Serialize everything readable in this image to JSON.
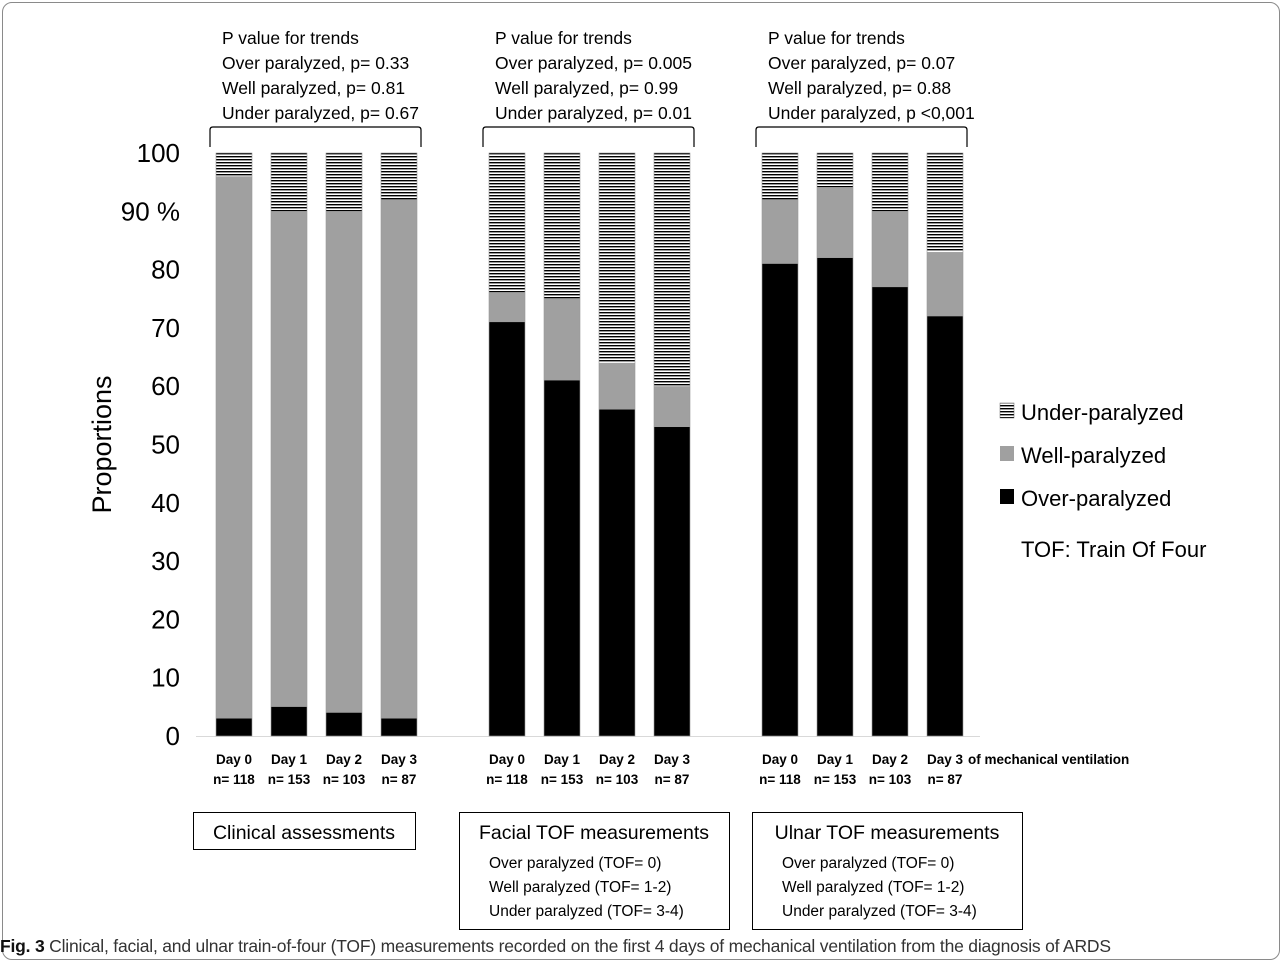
{
  "chart_data": {
    "type": "bar",
    "stacked": true,
    "ylabel": "Proportions",
    "ylim": [
      0,
      100
    ],
    "yticks": [
      "0",
      "10",
      "20",
      "30",
      "40",
      "50",
      "60",
      "70",
      "80",
      "90 %",
      "100"
    ],
    "x_suffix": "of mechanical ventilation",
    "legend": {
      "placement": "right",
      "items": [
        {
          "key": "under",
          "label": "Under-paralyzed"
        },
        {
          "key": "well",
          "label": "Well-paralyzed"
        },
        {
          "key": "over",
          "label": "Over-paralyzed"
        }
      ],
      "note": "TOF: Train Of Four"
    },
    "colors": {
      "over": "#000000",
      "well": "#a0a0a0",
      "under_stripe": "#000000",
      "under_bg": "#ffffff"
    },
    "groups": [
      {
        "name": "Clinical assessments",
        "box_lines": [],
        "pvalues": [
          "P value for trends",
          "Over paralyzed, p= 0.33",
          "Well paralyzed, p= 0.81",
          "Under paralyzed, p= 0.67"
        ],
        "bars": [
          {
            "day": "Day 0",
            "n": "n= 118",
            "over": 3,
            "well": 93,
            "under": 4
          },
          {
            "day": "Day 1",
            "n": "n= 153",
            "over": 5,
            "well": 85,
            "under": 10
          },
          {
            "day": "Day 2",
            "n": "n= 103",
            "over": 4,
            "well": 86,
            "under": 10
          },
          {
            "day": "Day 3",
            "n": "n= 87",
            "over": 3,
            "well": 89,
            "under": 8
          }
        ]
      },
      {
        "name": "Facial TOF measurements",
        "box_lines": [
          "Over paralyzed (TOF= 0)",
          "Well  paralyzed (TOF= 1-2)",
          "Under paralyzed (TOF= 3-4)"
        ],
        "pvalues": [
          "P value for trends",
          "Over paralyzed, p= 0.005",
          "Well paralyzed, p= 0.99",
          "Under paralyzed, p= 0.01"
        ],
        "bars": [
          {
            "day": "Day 0",
            "n": "n= 118",
            "over": 71,
            "well": 5,
            "under": 24
          },
          {
            "day": "Day 1",
            "n": "n= 153",
            "over": 61,
            "well": 14,
            "under": 25
          },
          {
            "day": "Day 2",
            "n": "n= 103",
            "over": 56,
            "well": 8,
            "under": 36
          },
          {
            "day": "Day 3",
            "n": "n= 87",
            "over": 53,
            "well": 7,
            "under": 40
          }
        ]
      },
      {
        "name": "Ulnar TOF measurements",
        "box_lines": [
          "Over paralyzed (TOF= 0)",
          "Well paralyzed (TOF= 1-2)",
          "Under paralyzed (TOF= 3-4)"
        ],
        "pvalues": [
          "P value for trends",
          "Over paralyzed, p= 0.07",
          "Well paralyzed, p= 0.88",
          "Under paralyzed, p <0,001"
        ],
        "bars": [
          {
            "day": "Day 0",
            "n": "n= 118",
            "over": 81,
            "well": 11,
            "under": 8
          },
          {
            "day": "Day 1",
            "n": "n= 153",
            "over": 82,
            "well": 12,
            "under": 6
          },
          {
            "day": "Day 2",
            "n": "n= 103",
            "over": 77,
            "well": 13,
            "under": 10
          },
          {
            "day": "Day 3",
            "n": "n= 87",
            "over": 72,
            "well": 11,
            "under": 17
          }
        ]
      }
    ]
  },
  "caption": {
    "label": "Fig. 3",
    "text": "Clinical, facial, and ulnar train-of-four (TOF) measurements recorded on the first 4 days of mechanical ventilation from the diagnosis of ARDS"
  }
}
